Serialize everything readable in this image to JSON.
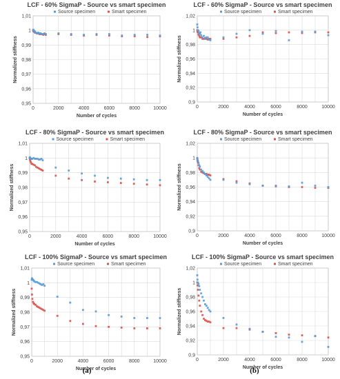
{
  "colors": {
    "source": "#5b9bd5",
    "smart": "#d9534f"
  },
  "captions": [
    "(a)",
    "(b)"
  ],
  "chart_data": [
    {
      "type": "scatter",
      "title": "LCF - 60% SigmaP - Source vs smart specimen",
      "xlabel": "Number of cycles",
      "ylabel": "Normalized stiffness",
      "xlim": [
        0,
        10000
      ],
      "ylim": [
        0.95,
        1.01
      ],
      "xticks": [
        0,
        2000,
        4000,
        6000,
        8000,
        10000
      ],
      "yticks": [
        0.95,
        0.96,
        0.97,
        0.98,
        0.99,
        1,
        1.01
      ],
      "ytick_labels": [
        "0,95",
        "0,96",
        "0,97",
        "0,98",
        "0,99",
        "1",
        "1,01"
      ],
      "grid": true,
      "legend": "top",
      "series": [
        {
          "name": "Source specimen",
          "color": "#5b9bd5",
          "x": [
            0,
            20,
            50,
            100,
            150,
            200,
            300,
            400,
            500,
            600,
            700,
            800,
            900,
            1000,
            2000,
            3000,
            4000,
            5000,
            6000,
            7000,
            8000,
            9000,
            10000
          ],
          "y": [
            1.0,
            1.0005,
            1.0,
            0.9995,
            0.999,
            0.9985,
            0.998,
            0.9985,
            0.998,
            0.998,
            0.9975,
            0.9975,
            0.998,
            0.9975,
            0.998,
            0.9975,
            0.997,
            0.9975,
            0.9975,
            0.9965,
            0.997,
            0.997,
            0.9965
          ]
        },
        {
          "name": "Smart specimen",
          "color": "#d9534f",
          "x": [
            0,
            20,
            50,
            100,
            150,
            200,
            300,
            400,
            500,
            600,
            700,
            800,
            900,
            1000,
            2000,
            3000,
            4000,
            5000,
            6000,
            7000,
            8000,
            9000,
            10000
          ],
          "y": [
            1.0,
            0.9995,
            0.9995,
            0.999,
            0.9985,
            0.9985,
            0.998,
            0.998,
            0.9975,
            0.9975,
            0.9975,
            0.997,
            0.9975,
            0.997,
            0.9975,
            0.997,
            0.9965,
            0.997,
            0.9965,
            0.996,
            0.996,
            0.9955,
            0.996
          ]
        }
      ]
    },
    {
      "type": "scatter",
      "title": "LCF - 60% SigmaP - Source vs smart specimen",
      "xlabel": "Number of cycles",
      "ylabel": "Normalized stiffness",
      "xlim": [
        0,
        10000
      ],
      "ylim": [
        0.9,
        1.02
      ],
      "xticks": [
        0,
        2000,
        4000,
        6000,
        8000,
        10000
      ],
      "yticks": [
        0.9,
        0.92,
        0.94,
        0.96,
        0.98,
        1,
        1.02
      ],
      "ytick_labels": [
        "0,9",
        "0,92",
        "0,94",
        "0,96",
        "0,98",
        "1",
        "1,02"
      ],
      "grid": true,
      "legend": "top",
      "series": [
        {
          "name": "Source specimen",
          "color": "#5b9bd5",
          "x": [
            0,
            20,
            50,
            100,
            150,
            200,
            250,
            300,
            400,
            500,
            600,
            700,
            800,
            900,
            1000,
            2000,
            3000,
            4000,
            5000,
            6000,
            7000,
            8000,
            9000,
            10000
          ],
          "y": [
            1.008,
            1.004,
            1.0,
            0.999,
            0.996,
            0.995,
            0.997,
            0.993,
            0.99,
            0.992,
            0.988,
            0.99,
            0.99,
            0.987,
            0.986,
            0.99,
            0.995,
            1.0,
            0.995,
            0.999,
            0.986,
            0.998,
            0.998,
            0.993
          ]
        },
        {
          "name": "Smart specimen",
          "color": "#d9534f",
          "x": [
            0,
            20,
            50,
            100,
            150,
            200,
            300,
            400,
            500,
            600,
            700,
            800,
            900,
            1000,
            2000,
            3000,
            4000,
            5000,
            6000,
            7000,
            8000,
            9000,
            10000
          ],
          "y": [
            1.0,
            0.998,
            0.997,
            0.994,
            0.992,
            0.99,
            0.99,
            0.988,
            0.988,
            0.989,
            0.988,
            0.987,
            0.988,
            0.988,
            0.988,
            0.99,
            0.992,
            0.997,
            0.996,
            0.997,
            0.996,
            0.997,
            0.997
          ]
        }
      ]
    },
    {
      "type": "scatter",
      "title": "LCF - 80% SigmaP - Source vs smart specimen",
      "xlabel": "Number of cycles",
      "ylabel": "Normalized stiffness",
      "xlim": [
        0,
        10000
      ],
      "ylim": [
        0.95,
        1.01
      ],
      "xticks": [
        0,
        2000,
        4000,
        6000,
        8000,
        10000
      ],
      "yticks": [
        0.95,
        0.96,
        0.97,
        0.98,
        0.99,
        1,
        1.01
      ],
      "ytick_labels": [
        "0,95",
        "0,96",
        "0,97",
        "0,98",
        "0,99",
        "1",
        "1,01"
      ],
      "grid": true,
      "legend": "top",
      "series": [
        {
          "name": "Source specimen",
          "color": "#5b9bd5",
          "x": [
            0,
            20,
            50,
            100,
            150,
            200,
            300,
            400,
            500,
            600,
            700,
            800,
            900,
            1000,
            2000,
            3000,
            4000,
            5000,
            6000,
            7000,
            8000,
            9000,
            10000
          ],
          "y": [
            1.0,
            1.0005,
            1.0,
            0.9995,
            0.9995,
            0.9995,
            1.0,
            0.9995,
            0.9995,
            0.9995,
            0.999,
            0.999,
            0.9995,
            0.9985,
            0.9935,
            0.9915,
            0.9895,
            0.988,
            0.9865,
            0.986,
            0.9855,
            0.985,
            0.985
          ]
        },
        {
          "name": "Smart specimen",
          "color": "#d9534f",
          "x": [
            0,
            20,
            50,
            100,
            150,
            200,
            300,
            400,
            500,
            600,
            700,
            800,
            900,
            1000,
            2000,
            3000,
            4000,
            5000,
            6000,
            7000,
            8000,
            9000,
            10000
          ],
          "y": [
            1.0,
            0.999,
            0.998,
            0.997,
            0.996,
            0.996,
            0.9955,
            0.995,
            0.994,
            0.9935,
            0.993,
            0.9925,
            0.992,
            0.9915,
            0.988,
            0.986,
            0.985,
            0.984,
            0.9835,
            0.983,
            0.9825,
            0.982,
            0.9815
          ]
        }
      ]
    },
    {
      "type": "scatter",
      "title": "LCF - 80% SigmaP - Source vs smart specimen",
      "xlabel": "Number of cycles",
      "ylabel": "Normalized stiffness",
      "xlim": [
        0,
        10000
      ],
      "ylim": [
        0.9,
        1.02
      ],
      "xticks": [
        0,
        2000,
        4000,
        6000,
        8000,
        10000
      ],
      "yticks": [
        0.9,
        0.92,
        0.94,
        0.96,
        0.98,
        1,
        1.02
      ],
      "ytick_labels": [
        "0,9",
        "0,92",
        "0,94",
        "0,96",
        "0,98",
        "1",
        "1,02"
      ],
      "grid": true,
      "legend": "top",
      "series": [
        {
          "name": "Source specimen",
          "color": "#5b9bd5",
          "x": [
            0,
            20,
            50,
            100,
            150,
            200,
            300,
            400,
            500,
            600,
            700,
            800,
            900,
            1000,
            2000,
            3000,
            4000,
            5000,
            6000,
            7000,
            8000,
            9000,
            10000
          ],
          "y": [
            1.0,
            0.998,
            0.996,
            0.993,
            0.99,
            0.988,
            0.984,
            0.982,
            0.98,
            0.978,
            0.976,
            0.974,
            0.972,
            0.97,
            0.97,
            0.966,
            0.964,
            0.962,
            0.962,
            0.961,
            0.966,
            0.962,
            0.96
          ]
        },
        {
          "name": "Smart specimen",
          "color": "#d9534f",
          "x": [
            0,
            20,
            50,
            100,
            150,
            200,
            300,
            400,
            500,
            600,
            700,
            800,
            900,
            1000,
            2000,
            3000,
            4000,
            5000,
            6000,
            7000,
            8000,
            9000,
            10000
          ],
          "y": [
            0.999,
            0.996,
            0.994,
            0.99,
            0.986,
            0.984,
            0.981,
            0.98,
            0.979,
            0.978,
            0.978,
            0.977,
            0.977,
            0.976,
            0.971,
            0.968,
            0.965,
            0.962,
            0.961,
            0.96,
            0.96,
            0.959,
            0.959
          ]
        }
      ]
    },
    {
      "type": "scatter",
      "title": "LCF - 100% SigmaP - Source vs smart specimen",
      "xlabel": "Number of cycles",
      "ylabel": "Normalized stiffness",
      "xlim": [
        0,
        10000
      ],
      "ylim": [
        0.95,
        1.01
      ],
      "xticks": [
        0,
        2000,
        4000,
        6000,
        8000,
        10000
      ],
      "yticks": [
        0.95,
        0.96,
        0.97,
        0.98,
        0.99,
        1,
        1.01
      ],
      "ytick_labels": [
        "0,95",
        "0,96",
        "0,97",
        "0,98",
        "0,99",
        "1",
        "1,01"
      ],
      "grid": true,
      "legend": "top",
      "series": [
        {
          "name": "Source specimen",
          "color": "#5b9bd5",
          "x": [
            0,
            20,
            50,
            100,
            150,
            200,
            300,
            400,
            500,
            600,
            700,
            800,
            900,
            1000,
            2000,
            3000,
            4000,
            5000,
            6000,
            7000,
            8000,
            9000,
            10000
          ],
          "y": [
            1.002,
            1.003,
            1.0025,
            1.002,
            1.0015,
            1.001,
            1.0005,
            1.0005,
            1.0,
            0.9995,
            0.999,
            0.9985,
            0.999,
            0.998,
            0.9905,
            0.9865,
            0.9815,
            0.9805,
            0.978,
            0.977,
            0.976,
            0.976,
            0.976
          ]
        },
        {
          "name": "Smart specimen",
          "color": "#d9534f",
          "x": [
            0,
            20,
            50,
            100,
            150,
            200,
            300,
            400,
            500,
            600,
            700,
            800,
            900,
            1000,
            2000,
            3000,
            4000,
            5000,
            6000,
            7000,
            8000,
            9000,
            10000
          ],
          "y": [
            0.996,
            0.992,
            0.989,
            0.987,
            0.986,
            0.9855,
            0.985,
            0.984,
            0.9835,
            0.983,
            0.9825,
            0.982,
            0.9815,
            0.981,
            0.9775,
            0.974,
            0.972,
            0.9705,
            0.97,
            0.9695,
            0.969,
            0.969,
            0.969
          ]
        }
      ]
    },
    {
      "type": "scatter",
      "title": "LCF - 100% SigmaP - Source vs smart specimen",
      "xlabel": "Number of cycles",
      "ylabel": "Normalized stiffness",
      "xlim": [
        0,
        10000
      ],
      "ylim": [
        0.9,
        1.02
      ],
      "xticks": [
        0,
        2000,
        4000,
        6000,
        8000,
        10000
      ],
      "yticks": [
        0.9,
        0.92,
        0.94,
        0.96,
        0.98,
        1,
        1.02
      ],
      "ytick_labels": [
        "0,9",
        "0,92",
        "0,94",
        "0,96",
        "0,98",
        "1",
        "1,02"
      ],
      "grid": true,
      "legend": "top",
      "series": [
        {
          "name": "Source specimen",
          "color": "#5b9bd5",
          "x": [
            0,
            20,
            50,
            100,
            150,
            200,
            300,
            400,
            500,
            600,
            700,
            800,
            900,
            1000,
            2000,
            3000,
            4000,
            5000,
            6000,
            7000,
            8000,
            9000,
            10000
          ],
          "y": [
            1.01,
            1.004,
            1.0,
            0.998,
            0.995,
            0.99,
            0.985,
            0.98,
            0.975,
            0.97,
            0.968,
            0.965,
            0.962,
            0.96,
            0.951,
            0.942,
            0.936,
            0.932,
            0.925,
            0.924,
            0.918,
            0.926,
            0.911
          ]
        },
        {
          "name": "Smart specimen",
          "color": "#d9534f",
          "x": [
            0,
            20,
            50,
            100,
            150,
            200,
            300,
            400,
            500,
            600,
            700,
            800,
            900,
            1000,
            2000,
            3000,
            4000,
            5000,
            6000,
            7000,
            8000,
            9000,
            10000
          ],
          "y": [
            1.0,
            0.996,
            0.99,
            0.982,
            0.975,
            0.968,
            0.96,
            0.955,
            0.95,
            0.948,
            0.947,
            0.946,
            0.946,
            0.945,
            0.937,
            0.937,
            0.935,
            0.932,
            0.93,
            0.928,
            0.927,
            0.926,
            0.924
          ]
        }
      ]
    }
  ]
}
